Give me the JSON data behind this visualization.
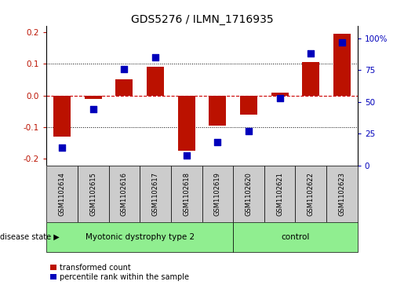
{
  "title": "GDS5276 / ILMN_1716935",
  "samples": [
    "GSM1102614",
    "GSM1102615",
    "GSM1102616",
    "GSM1102617",
    "GSM1102618",
    "GSM1102619",
    "GSM1102620",
    "GSM1102621",
    "GSM1102622",
    "GSM1102623"
  ],
  "red_bars": [
    -0.13,
    -0.012,
    0.05,
    0.09,
    -0.175,
    -0.095,
    -0.06,
    0.008,
    0.105,
    0.195
  ],
  "blue_dots_pct": [
    14,
    44,
    76,
    85,
    8,
    18,
    27,
    53,
    88,
    97
  ],
  "groups": [
    {
      "label": "Myotonic dystrophy type 2",
      "start": 0,
      "end": 5,
      "color": "#90EE90"
    },
    {
      "label": "control",
      "start": 6,
      "end": 9,
      "color": "#90EE90"
    }
  ],
  "ylim_left": [
    -0.22,
    0.22
  ],
  "ylim_right": [
    0,
    110
  ],
  "yticks_left": [
    -0.2,
    -0.1,
    0.0,
    0.1,
    0.2
  ],
  "yticks_right": [
    0,
    25,
    50,
    75,
    100
  ],
  "ytick_labels_right": [
    "0",
    "25",
    "50",
    "75",
    "100%"
  ],
  "red_color": "#BB1100",
  "blue_color": "#0000BB",
  "dashed_zero_color": "#CC0000",
  "grid_color": "black",
  "bar_width": 0.55,
  "dot_size": 28,
  "disease_state_label": "disease state",
  "legend_red": "transformed count",
  "legend_blue": "percentile rank within the sample",
  "group_divider": 6,
  "sample_box_color": "#CCCCCC"
}
